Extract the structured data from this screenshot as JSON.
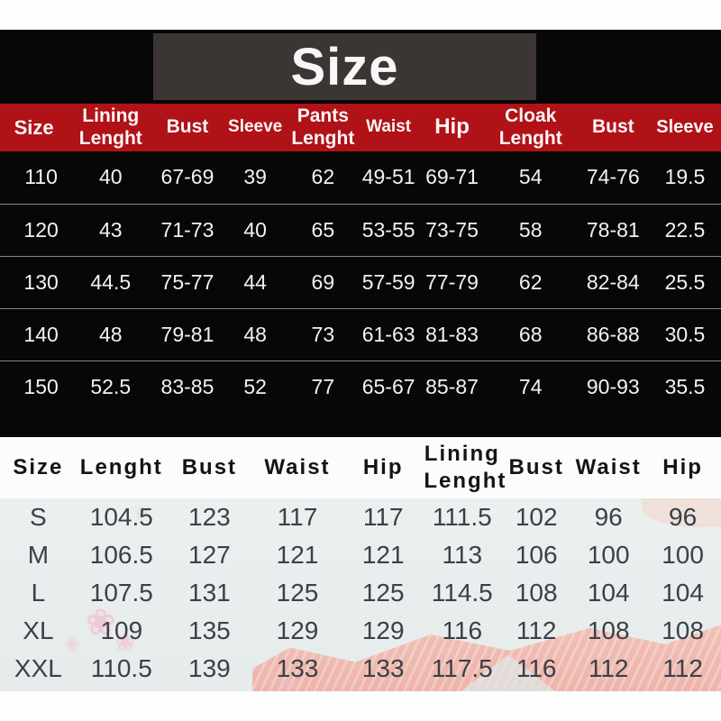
{
  "title": "Size",
  "top_table": {
    "headers": [
      "Size",
      "Lining\nLenght",
      "Bust",
      "Sleeve",
      "Pants\nLenght",
      "Waist",
      "Hip",
      "Cloak\nLenght",
      "Bust",
      "Sleeve"
    ],
    "rows": [
      [
        "110",
        "40",
        "67-69",
        "39",
        "62",
        "49-51",
        "69-71",
        "54",
        "74-76",
        "19.5"
      ],
      [
        "120",
        "43",
        "71-73",
        "40",
        "65",
        "53-55",
        "73-75",
        "58",
        "78-81",
        "22.5"
      ],
      [
        "130",
        "44.5",
        "75-77",
        "44",
        "69",
        "57-59",
        "77-79",
        "62",
        "82-84",
        "25.5"
      ],
      [
        "140",
        "48",
        "79-81",
        "48",
        "73",
        "61-63",
        "81-83",
        "68",
        "86-88",
        "30.5"
      ],
      [
        "150",
        "52.5",
        "83-85",
        "52",
        "77",
        "65-67",
        "85-87",
        "74",
        "90-93",
        "35.5"
      ]
    ]
  },
  "bottom_table": {
    "headers": [
      "Size",
      "Lenght",
      "Bust",
      "Waist",
      "Hip",
      "Lining\nLenght",
      "Bust",
      "Waist",
      "Hip"
    ],
    "rows": [
      [
        "S",
        "104.5",
        "123",
        "117",
        "117",
        "111.5",
        "102",
        "96",
        "96"
      ],
      [
        "M",
        "106.5",
        "127",
        "121",
        "121",
        "113",
        "106",
        "100",
        "100"
      ],
      [
        "L",
        "107.5",
        "131",
        "125",
        "125",
        "114.5",
        "108",
        "104",
        "104"
      ],
      [
        "XL",
        "109",
        "135",
        "129",
        "129",
        "116",
        "112",
        "108",
        "108"
      ],
      [
        "XXL",
        "110.5",
        "139",
        "133",
        "133",
        "117.5",
        "116",
        "112",
        "112"
      ]
    ]
  },
  "decor": {
    "flower_glyph": "❀"
  },
  "colors": {
    "dark_bg": "#070707",
    "title_banner_bg": "#3b3533",
    "header_band_red": "#b01217",
    "top_text": "#f2f2f2",
    "divider_gray": "#858585",
    "light_rows_bg": "#e8edec",
    "bottom_text": "#3b4048",
    "salmon_pattern": "#f0b3a8",
    "blossom_pink": "#f0bcce"
  }
}
